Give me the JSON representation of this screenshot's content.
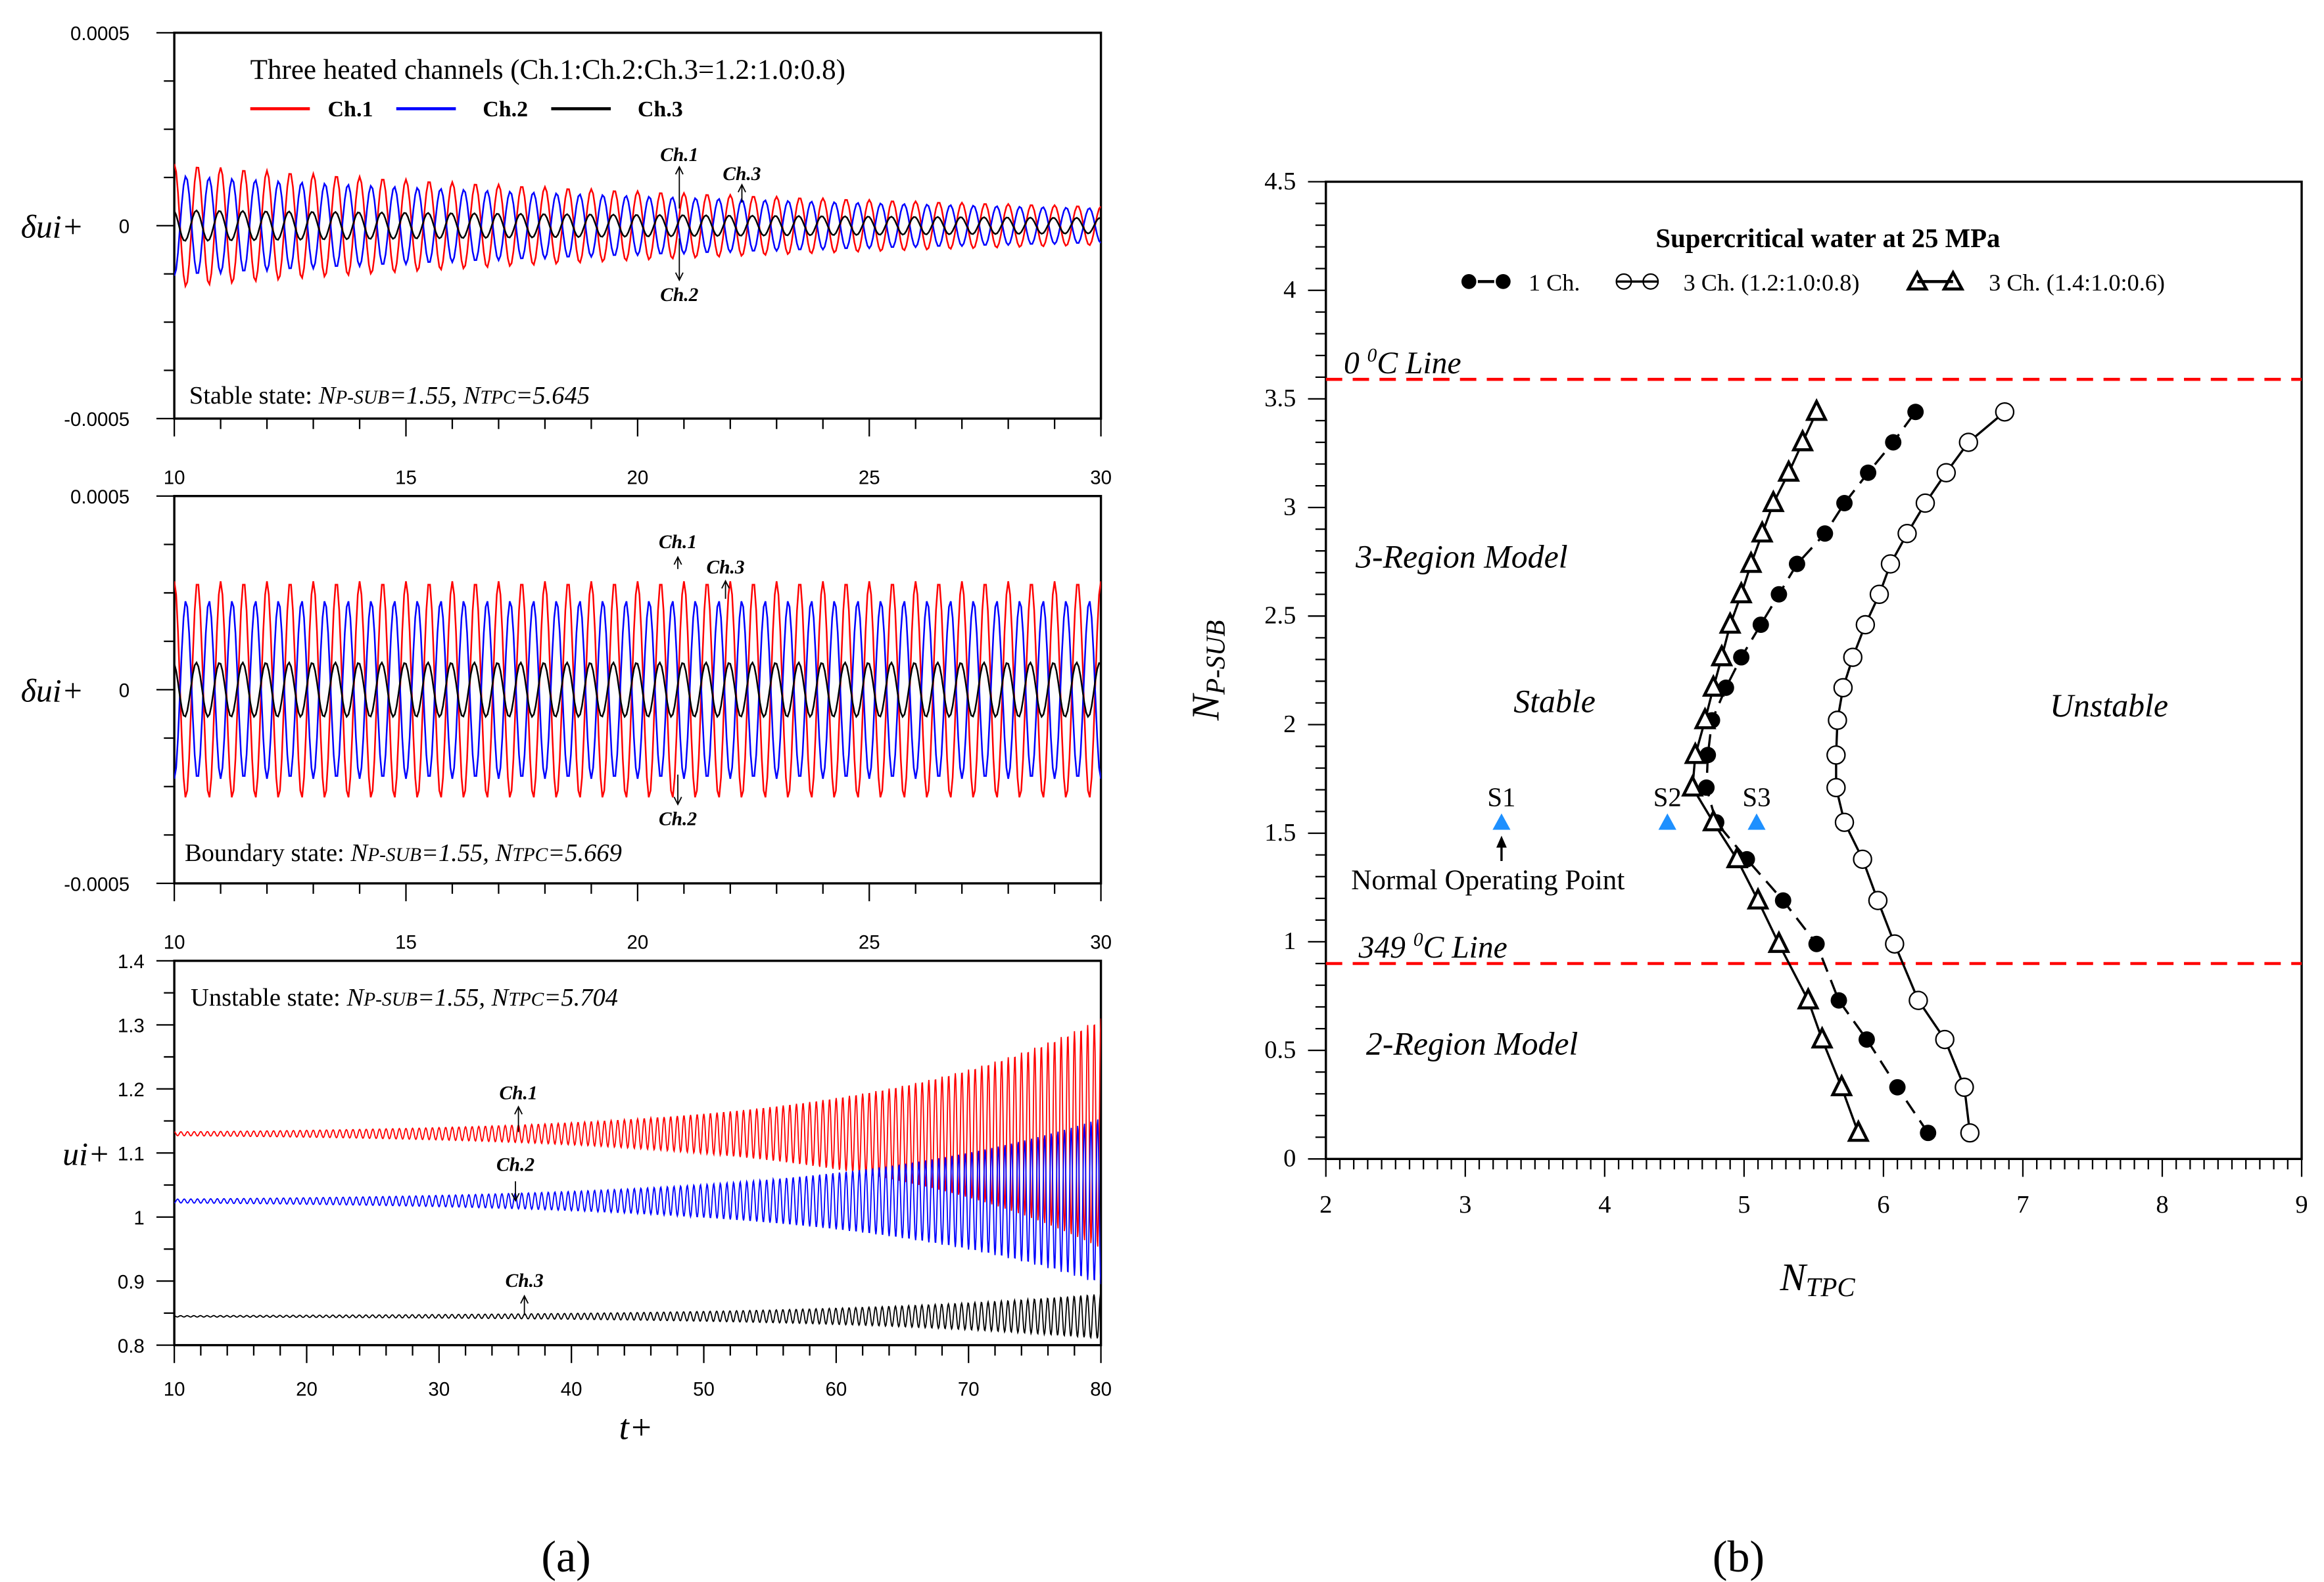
{
  "figure": {
    "label_a": "(a)",
    "label_b": "(b)"
  },
  "chart_data": [
    {
      "type": "line",
      "panel": "a-top",
      "title": "Three heated channels (Ch.1:Ch.2:Ch.3=1.2:1.0:0.8)",
      "ylabel": "δui+",
      "xlim": [
        10,
        30
      ],
      "ylim": [
        -0.0005,
        0.0005
      ],
      "xticks": [
        10,
        15,
        20,
        25,
        30
      ],
      "yticks": [
        {
          "v": 0.0005,
          "label": "0.0005"
        },
        {
          "v": 0,
          "label": "0"
        },
        {
          "v": -0.0005,
          "label": "-0.0005"
        }
      ],
      "legend": [
        "Ch.1",
        "Ch.2",
        "Ch.3"
      ],
      "state": {
        "prefix": "Stable state: ",
        "v1": "N",
        "s1": "P-SUB",
        "t1": "=1.55, ",
        "v2": "N",
        "s2": "TPC",
        "t2": "=5.645"
      },
      "annotations": [
        "Ch.1",
        "Ch.3",
        "Ch.2"
      ],
      "series": [
        {
          "name": "Ch.1",
          "color": "#ff0000",
          "mean": 0,
          "amp_start": 0.00016,
          "amp_end": 5e-05,
          "period": 0.5,
          "phase": 0
        },
        {
          "name": "Ch.2",
          "color": "#0000ff",
          "mean": 0,
          "amp_start": 0.00013,
          "amp_end": 4.5e-05,
          "period": 0.5,
          "phase": 3.14159
        },
        {
          "name": "Ch.3",
          "color": "#000000",
          "mean": 0,
          "amp_start": 4e-05,
          "amp_end": 2e-05,
          "period": 0.5,
          "phase": 0.3
        }
      ]
    },
    {
      "type": "line",
      "panel": "a-middle",
      "ylabel": "δui+",
      "xlim": [
        10,
        30
      ],
      "ylim": [
        -0.0005,
        0.0005
      ],
      "xticks": [
        10,
        15,
        20,
        25,
        30
      ],
      "yticks": [
        {
          "v": 0.0005,
          "label": "0.0005"
        },
        {
          "v": 0,
          "label": "0"
        },
        {
          "v": -0.0005,
          "label": "-0.0005"
        }
      ],
      "state": {
        "prefix": "Boundary state: ",
        "v1": "N",
        "s1": "P-SUB",
        "t1": "=1.55, ",
        "v2": "N",
        "s2": "TPC",
        "t2": "=5.669"
      },
      "annotations": [
        "Ch.1",
        "Ch.3",
        "Ch.2"
      ],
      "series": [
        {
          "name": "Ch.1",
          "color": "#ff0000",
          "mean": 0,
          "amp_start": 0.00028,
          "amp_end": 0.00028,
          "period": 0.5,
          "phase": 0
        },
        {
          "name": "Ch.2",
          "color": "#0000ff",
          "mean": 0,
          "amp_start": 0.00023,
          "amp_end": 0.00023,
          "period": 0.5,
          "phase": 3.14159
        },
        {
          "name": "Ch.3",
          "color": "#000000",
          "mean": 0,
          "amp_start": 7e-05,
          "amp_end": 7e-05,
          "period": 0.5,
          "phase": 0.3
        }
      ]
    },
    {
      "type": "line",
      "panel": "a-bottom",
      "xlabel": "t+",
      "ylabel": "ui+",
      "xlim": [
        10,
        80
      ],
      "ylim": [
        0.8,
        1.4
      ],
      "xticks": [
        10,
        20,
        30,
        40,
        50,
        60,
        70,
        80
      ],
      "yticks": [
        {
          "v": 1.4,
          "label": "1.4"
        },
        {
          "v": 1.3,
          "label": "1.3"
        },
        {
          "v": 1.2,
          "label": "1.2"
        },
        {
          "v": 1.1,
          "label": "1.1"
        },
        {
          "v": 1.0,
          "label": "1"
        },
        {
          "v": 0.9,
          "label": "0.9"
        },
        {
          "v": 0.8,
          "label": "0.8"
        }
      ],
      "state": {
        "prefix": "Unstable state: ",
        "v1": "N",
        "s1": "P-SUB",
        "t1": "=1.55, ",
        "v2": "N",
        "s2": "TPC",
        "t2": "=5.704"
      },
      "annotations": [
        "Ch.1",
        "Ch.2",
        "Ch.3"
      ],
      "series": [
        {
          "name": "Ch.1",
          "color": "#ff0000",
          "mean": 1.13,
          "amp_start": 0.003,
          "amp_end": 0.18,
          "period": 0.5,
          "phase": 0
        },
        {
          "name": "Ch.2",
          "color": "#0000ff",
          "mean": 1.025,
          "amp_start": 0.003,
          "amp_end": 0.13,
          "period": 0.5,
          "phase": 3.14159
        },
        {
          "name": "Ch.3",
          "color": "#000000",
          "mean": 0.845,
          "amp_start": 0.001,
          "amp_end": 0.035,
          "period": 0.5,
          "phase": 0.3
        }
      ]
    },
    {
      "type": "line",
      "panel": "b",
      "title": "Supercritical water at 25 MPa",
      "xlabel": {
        "v": "N",
        "s": "TPC"
      },
      "ylabel": {
        "v": "N",
        "s": "P-SUB"
      },
      "xlim": [
        2,
        9
      ],
      "ylim": [
        0,
        4.5
      ],
      "xticks": [
        2,
        3,
        4,
        5,
        6,
        7,
        8,
        9
      ],
      "yticks": [
        {
          "v": 0,
          "label": "0"
        },
        {
          "v": 0.5,
          "label": "0.5"
        },
        {
          "v": 1,
          "label": "1"
        },
        {
          "v": 1.5,
          "label": "1.5"
        },
        {
          "v": 2,
          "label": "2"
        },
        {
          "v": 2.5,
          "label": "2.5"
        },
        {
          "v": 3,
          "label": "3"
        },
        {
          "v": 3.5,
          "label": "3.5"
        },
        {
          "v": 4,
          "label": "4"
        },
        {
          "v": 4.5,
          "label": "4.5"
        }
      ],
      "y": [
        0.12,
        0.33,
        0.55,
        0.73,
        0.99,
        1.19,
        1.38,
        1.55,
        1.71,
        1.86,
        2.02,
        2.17,
        2.31,
        2.46,
        2.6,
        2.74,
        2.88,
        3.02,
        3.16,
        3.3,
        3.44
      ],
      "series": [
        {
          "name": "1 Ch.",
          "marker": "filled-circle",
          "line": "dashed",
          "x": [
            6.32,
            6.1,
            5.88,
            5.68,
            5.52,
            5.28,
            5.02,
            4.8,
            4.73,
            4.74,
            4.77,
            4.87,
            4.98,
            5.12,
            5.25,
            5.38,
            5.58,
            5.72,
            5.89,
            6.07,
            6.23
          ]
        },
        {
          "name": "3 Ch. (1.2:1.0:0.8)",
          "marker": "open-circle",
          "line": "solid",
          "x": [
            6.62,
            6.58,
            6.44,
            6.25,
            6.08,
            5.96,
            5.85,
            5.72,
            5.66,
            5.66,
            5.67,
            5.71,
            5.78,
            5.87,
            5.97,
            6.05,
            6.17,
            6.3,
            6.45,
            6.61,
            6.87
          ]
        },
        {
          "name": "3 Ch. (1.4:1.0:0.6)",
          "marker": "open-triangle",
          "line": "solid",
          "x": [
            5.82,
            5.7,
            5.56,
            5.46,
            5.25,
            5.1,
            4.95,
            4.78,
            4.63,
            4.65,
            4.72,
            4.78,
            4.84,
            4.9,
            4.98,
            5.05,
            5.13,
            5.21,
            5.32,
            5.42,
            5.52
          ]
        }
      ],
      "ref_lines": [
        {
          "value": 3.59,
          "label_pre": "0 ",
          "label_sup": "0",
          "label_post": "C Line",
          "color": "#ff0000"
        },
        {
          "value": 0.9,
          "label_pre": "349 ",
          "label_sup": "0",
          "label_post": "C Line",
          "color": "#ff0000"
        }
      ],
      "points": [
        {
          "name": "S1",
          "x": 3.26,
          "y": 1.55,
          "color": "#1e90ff"
        },
        {
          "name": "S2",
          "x": 4.45,
          "y": 1.55,
          "color": "#1e90ff"
        },
        {
          "name": "S3",
          "x": 5.09,
          "y": 1.55,
          "color": "#1e90ff"
        }
      ],
      "annotations": {
        "normal_point": "Normal Operating Point",
        "three_region": "3-Region Model",
        "two_region": "2-Region Model",
        "stable": "Stable",
        "unstable": "Unstable"
      }
    }
  ]
}
